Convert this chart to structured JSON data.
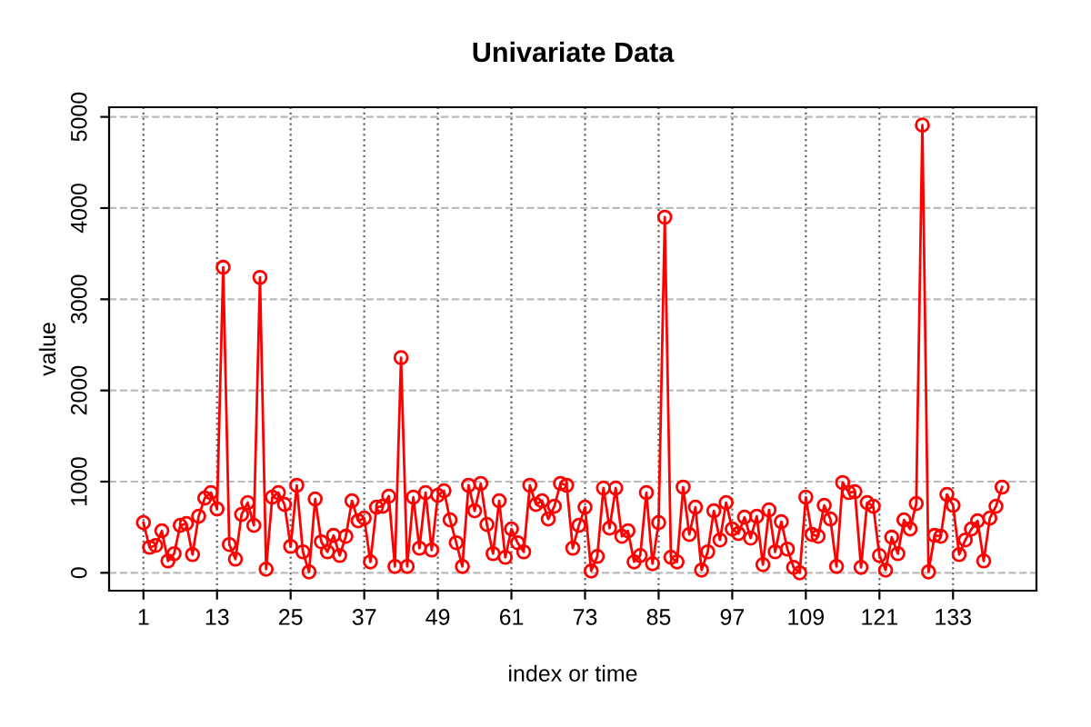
{
  "chart_data": {
    "type": "line",
    "title": "Univariate Data",
    "xlabel": "index or time",
    "ylabel": "value",
    "x": [
      1,
      2,
      3,
      4,
      5,
      6,
      7,
      8,
      9,
      10,
      11,
      12,
      13,
      14,
      15,
      16,
      17,
      18,
      19,
      20,
      21,
      22,
      23,
      24,
      25,
      26,
      27,
      28,
      29,
      30,
      31,
      32,
      33,
      34,
      35,
      36,
      37,
      38,
      39,
      40,
      41,
      42,
      43,
      44,
      45,
      46,
      47,
      48,
      49,
      50,
      51,
      52,
      53,
      54,
      55,
      56,
      57,
      58,
      59,
      60,
      61,
      62,
      63,
      64,
      65,
      66,
      67,
      68,
      69,
      70,
      71,
      72,
      73,
      74,
      75,
      76,
      77,
      78,
      79,
      80,
      81,
      82,
      83,
      84,
      85,
      86,
      87,
      88,
      89,
      90,
      91,
      92,
      93,
      94,
      95,
      96,
      97,
      98,
      99,
      100,
      101,
      102,
      103,
      104,
      105,
      106,
      107,
      108,
      109,
      110,
      111,
      112,
      113,
      114,
      115,
      116,
      117,
      118,
      119,
      120,
      121,
      122,
      123,
      124,
      125,
      126,
      127,
      128,
      129,
      130,
      131,
      132,
      133,
      134,
      135,
      136,
      137,
      138,
      139,
      140,
      141
    ],
    "series": [
      {
        "color": "#ff0000",
        "values": [
          550,
          280,
          300,
          460,
          130,
          210,
          520,
          540,
          200,
          620,
          820,
          880,
          700,
          3350,
          310,
          150,
          640,
          770,
          520,
          3240,
          40,
          830,
          880,
          750,
          290,
          960,
          230,
          10,
          810,
          340,
          230,
          410,
          190,
          400,
          790,
          570,
          600,
          120,
          720,
          730,
          840,
          70,
          2360,
          70,
          830,
          270,
          880,
          250,
          850,
          900,
          580,
          330,
          70,
          960,
          680,
          980,
          530,
          210,
          790,
          170,
          480,
          330,
          230,
          960,
          750,
          790,
          590,
          730,
          980,
          960,
          270,
          520,
          720,
          20,
          180,
          930,
          490,
          930,
          400,
          460,
          120,
          190,
          880,
          100,
          550,
          3900,
          170,
          120,
          940,
          420,
          720,
          30,
          230,
          680,
          360,
          770,
          480,
          430,
          610,
          380,
          620,
          90,
          690,
          230,
          560,
          260,
          60,
          0,
          830,
          420,
          400,
          740,
          590,
          70,
          990,
          880,
          890,
          60,
          770,
          730,
          190,
          30,
          390,
          210,
          580,
          480,
          760,
          4910,
          10,
          410,
          400,
          860,
          740,
          200,
          360,
          480,
          570,
          130,
          600,
          730,
          940
        ]
      }
    ],
    "xlim": [
      -4.6,
      146.6
    ],
    "ylim": [
      -196,
      5106
    ],
    "xticks": [
      1,
      13,
      25,
      37,
      49,
      61,
      73,
      85,
      97,
      109,
      121,
      133
    ],
    "yticks": [
      0,
      1000,
      2000,
      3000,
      4000,
      5000
    ],
    "grid": true,
    "marker": "circle",
    "line_style": "solid"
  }
}
